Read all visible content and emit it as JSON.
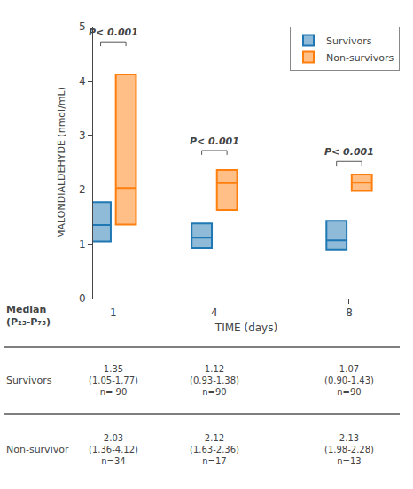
{
  "chart_data": {
    "type": "box",
    "x": [
      1,
      4,
      8
    ],
    "xlim": [
      0.4,
      9.5
    ],
    "xticks": [
      1,
      4,
      8
    ],
    "xlabel": "TIME (days)",
    "ylabel": "MALONDIALDEHYDE (nmol/mL)",
    "ylim": [
      0,
      5
    ],
    "yticks": [
      0,
      1,
      2,
      3,
      4,
      5
    ],
    "grid": false,
    "legend": "upper right",
    "series": [
      {
        "name": "Survivors",
        "median": [
          1.35,
          1.12,
          1.07
        ],
        "q1": [
          1.05,
          0.93,
          0.9
        ],
        "q3": [
          1.77,
          1.38,
          1.43
        ]
      },
      {
        "name": "Non-survivors",
        "median": [
          2.03,
          2.12,
          2.13
        ],
        "q1": [
          1.36,
          1.63,
          1.98
        ],
        "q3": [
          4.12,
          2.36,
          2.28
        ]
      }
    ],
    "annotations": [
      {
        "x": 1,
        "y": 4.72,
        "text": "P< 0.001"
      },
      {
        "x": 4,
        "y": 2.72,
        "text": "P< 0.001"
      },
      {
        "x": 8,
        "y": 2.52,
        "text": "P< 0.001"
      }
    ],
    "table": {
      "header": [
        "Median",
        "(P₂₅-P₇₅)"
      ],
      "row_labels": [
        "Survivors",
        "Non-survivor"
      ],
      "rows": [
        [
          "1.35\n(1.05-1.77)\nn= 90",
          "1.12\n(0.93-1.38)\nn=90",
          "1.07\n(0.90-1.43)\nn=90"
        ],
        [
          "2.03\n(1.36-4.12)\nn=34",
          "2.12\n(1.63-2.36)\nn=17",
          "2.13\n(1.98-2.28)\nn=13"
        ]
      ]
    }
  }
}
